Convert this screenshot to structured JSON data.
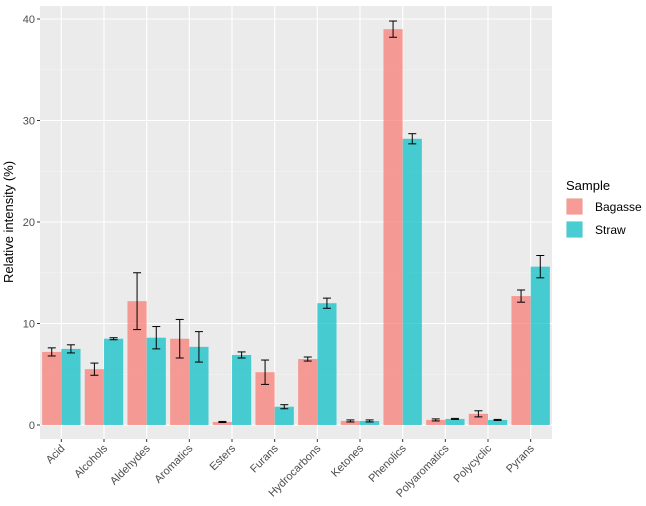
{
  "chart_data": {
    "type": "bar",
    "title": "",
    "xlabel": "",
    "ylabel": "Relative intensity (%)",
    "ylim": [
      0,
      42
    ],
    "yticks": [
      0,
      10,
      20,
      30,
      40
    ],
    "grid": true,
    "legend_position": "right",
    "legend_title": "Sample",
    "categories": [
      "Acid",
      "Alcohols",
      "Aldehydes",
      "Aromatics",
      "Esters",
      "Furans",
      "Hydrocarbons",
      "Ketones",
      "Phenolics",
      "Polyaromatics",
      "Polycyclic",
      "Pyrans"
    ],
    "series": [
      {
        "name": "Bagasse",
        "color": "#F8766D",
        "values": [
          7.2,
          5.5,
          12.2,
          8.5,
          0.3,
          5.2,
          6.5,
          0.4,
          39.0,
          0.5,
          1.1,
          12.7
        ],
        "errors": [
          0.4,
          0.6,
          2.8,
          1.9,
          0.05,
          1.2,
          0.2,
          0.1,
          0.8,
          0.1,
          0.3,
          0.6
        ]
      },
      {
        "name": "Straw",
        "color": "#00BFC4",
        "values": [
          7.5,
          8.5,
          8.6,
          7.7,
          6.9,
          1.8,
          12.0,
          0.4,
          28.2,
          0.6,
          0.5,
          15.6
        ],
        "errors": [
          0.4,
          0.1,
          1.1,
          1.5,
          0.3,
          0.2,
          0.5,
          0.1,
          0.5,
          0.05,
          0.05,
          1.1
        ]
      }
    ]
  }
}
